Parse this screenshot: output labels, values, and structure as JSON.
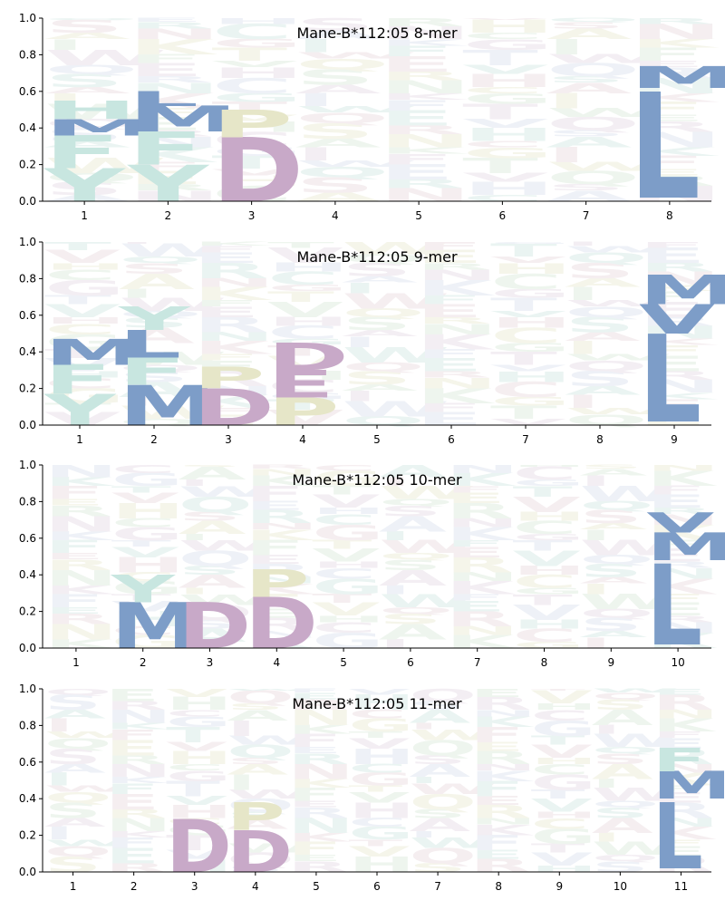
{
  "chart_data": [
    {
      "type": "sequence-logo",
      "title": "Mane-B*112:05 8-mer",
      "ylim": [
        0,
        1.0
      ],
      "yticks": [
        "0.0",
        "0.2",
        "0.4",
        "0.6",
        "0.8",
        "1.0"
      ],
      "positions": [
        "1",
        "2",
        "3",
        "4",
        "5",
        "6",
        "7",
        "8"
      ],
      "dominant_letters": [
        {
          "position": 1,
          "stack": [
            {
              "letter": "Y",
              "from": 0.0,
              "to": 0.18
            },
            {
              "letter": "F",
              "from": 0.18,
              "to": 0.36
            },
            {
              "letter": "M",
              "from": 0.36,
              "to": 0.45
            },
            {
              "letter": "H",
              "from": 0.45,
              "to": 0.55
            }
          ]
        },
        {
          "position": 2,
          "stack": [
            {
              "letter": "Y",
              "from": 0.0,
              "to": 0.2
            },
            {
              "letter": "F",
              "from": 0.2,
              "to": 0.38
            },
            {
              "letter": "M",
              "from": 0.38,
              "to": 0.52
            },
            {
              "letter": "L",
              "from": 0.52,
              "to": 0.6
            }
          ]
        },
        {
          "position": 3,
          "stack": [
            {
              "letter": "D",
              "from": 0.0,
              "to": 0.35
            },
            {
              "letter": "P",
              "from": 0.35,
              "to": 0.5
            }
          ]
        },
        {
          "position": 8,
          "stack": [
            {
              "letter": "L",
              "from": 0.02,
              "to": 0.6
            },
            {
              "letter": "M",
              "from": 0.62,
              "to": 0.74
            }
          ]
        }
      ]
    },
    {
      "type": "sequence-logo",
      "title": "Mane-B*112:05 9-mer",
      "ylim": [
        0,
        1.0
      ],
      "yticks": [
        "0.0",
        "0.2",
        "0.4",
        "0.6",
        "0.8",
        "1.0"
      ],
      "positions": [
        "1",
        "2",
        "3",
        "4",
        "5",
        "6",
        "7",
        "8",
        "9"
      ],
      "dominant_letters": [
        {
          "position": 1,
          "stack": [
            {
              "letter": "Y",
              "from": 0.0,
              "to": 0.17
            },
            {
              "letter": "F",
              "from": 0.17,
              "to": 0.33
            },
            {
              "letter": "M",
              "from": 0.33,
              "to": 0.47
            }
          ]
        },
        {
          "position": 2,
          "stack": [
            {
              "letter": "M",
              "from": 0.0,
              "to": 0.22
            },
            {
              "letter": "F",
              "from": 0.22,
              "to": 0.37
            },
            {
              "letter": "L",
              "from": 0.37,
              "to": 0.52
            },
            {
              "letter": "Y",
              "from": 0.52,
              "to": 0.65
            }
          ]
        },
        {
          "position": 3,
          "stack": [
            {
              "letter": "D",
              "from": 0.0,
              "to": 0.2
            },
            {
              "letter": "P",
              "from": 0.2,
              "to": 0.32
            }
          ]
        },
        {
          "position": 4,
          "stack": [
            {
              "letter": "P",
              "from": 0.0,
              "to": 0.15
            },
            {
              "letter": "E",
              "from": 0.15,
              "to": 0.3
            },
            {
              "letter": "D",
              "from": 0.3,
              "to": 0.45
            }
          ]
        },
        {
          "position": 9,
          "stack": [
            {
              "letter": "L",
              "from": 0.02,
              "to": 0.5
            },
            {
              "letter": "V",
              "from": 0.5,
              "to": 0.66
            },
            {
              "letter": "M",
              "from": 0.66,
              "to": 0.82
            }
          ]
        }
      ]
    },
    {
      "type": "sequence-logo",
      "title": "Mane-B*112:05 10-mer",
      "ylim": [
        0,
        1.0
      ],
      "yticks": [
        "0.0",
        "0.2",
        "0.4",
        "0.6",
        "0.8",
        "1.0"
      ],
      "positions": [
        "1",
        "2",
        "3",
        "4",
        "5",
        "6",
        "7",
        "8",
        "9",
        "10"
      ],
      "dominant_letters": [
        {
          "position": 2,
          "stack": [
            {
              "letter": "M",
              "from": 0.0,
              "to": 0.25
            },
            {
              "letter": "Y",
              "from": 0.25,
              "to": 0.4
            }
          ]
        },
        {
          "position": 3,
          "stack": [
            {
              "letter": "D",
              "from": 0.0,
              "to": 0.25
            }
          ]
        },
        {
          "position": 4,
          "stack": [
            {
              "letter": "D",
              "from": 0.0,
              "to": 0.28
            },
            {
              "letter": "P",
              "from": 0.28,
              "to": 0.43
            }
          ]
        },
        {
          "position": 10,
          "stack": [
            {
              "letter": "L",
              "from": 0.02,
              "to": 0.46
            },
            {
              "letter": "M",
              "from": 0.48,
              "to": 0.63
            },
            {
              "letter": "V",
              "from": 0.63,
              "to": 0.74
            }
          ]
        }
      ]
    },
    {
      "type": "sequence-logo",
      "title": "Mane-B*112:05 11-mer",
      "ylim": [
        0,
        1.0
      ],
      "yticks": [
        "0.0",
        "0.2",
        "0.4",
        "0.6",
        "0.8",
        "1.0"
      ],
      "positions": [
        "1",
        "2",
        "3",
        "4",
        "5",
        "6",
        "7",
        "8",
        "9",
        "10",
        "11"
      ],
      "dominant_letters": [
        {
          "position": 3,
          "stack": [
            {
              "letter": "D",
              "from": 0.0,
              "to": 0.29
            }
          ]
        },
        {
          "position": 4,
          "stack": [
            {
              "letter": "D",
              "from": 0.0,
              "to": 0.23
            },
            {
              "letter": "P",
              "from": 0.23,
              "to": 0.38
            }
          ]
        },
        {
          "position": 11,
          "stack": [
            {
              "letter": "L",
              "from": 0.02,
              "to": 0.38
            },
            {
              "letter": "M",
              "from": 0.4,
              "to": 0.55
            },
            {
              "letter": "F",
              "from": 0.55,
              "to": 0.68
            }
          ]
        }
      ]
    }
  ],
  "colors": {
    "acidic": "#c8a9c8",
    "proline": "#e6e6c8",
    "hydrophobic": "#7d9dc8",
    "aromatic": "#c8e6e0",
    "small": "#dcf0dc",
    "basic": "#f0c8d2",
    "other": "#e6ebf5"
  }
}
